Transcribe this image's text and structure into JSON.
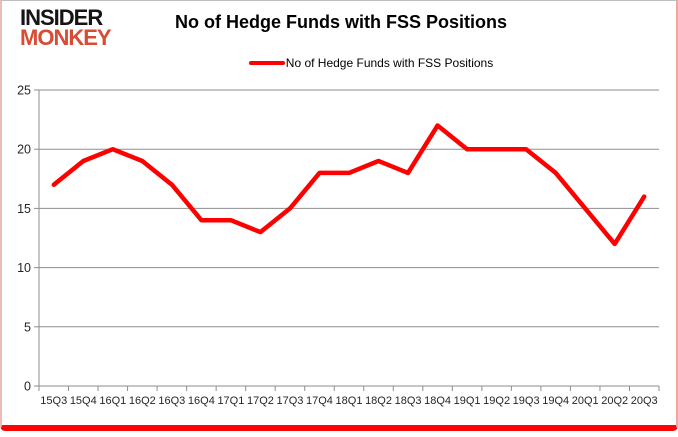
{
  "logo": {
    "line1": "INSIDER",
    "line2": "MONKEY"
  },
  "header": {
    "title": "No of Hedge Funds with FSS Positions"
  },
  "legend": {
    "label": "No of Hedge Funds with FSS Positions"
  },
  "colors": {
    "series_line": "#ff0000",
    "gridline": "#8e8e8e",
    "axis_line": "#8e8e8e",
    "axis_text": "#262626",
    "title_text": "#000000",
    "logo_black": "#151515",
    "logo_red": "#d84b35",
    "frame_bottom": "#fb0606"
  },
  "chart_data": {
    "type": "line",
    "title": "No of Hedge Funds with FSS Positions",
    "xlabel": "",
    "ylabel": "",
    "categories": [
      "15Q3",
      "15Q4",
      "16Q1",
      "16Q2",
      "16Q3",
      "16Q4",
      "17Q1",
      "17Q2",
      "17Q3",
      "17Q4",
      "18Q1",
      "18Q2",
      "18Q3",
      "18Q4",
      "19Q1",
      "19Q2",
      "19Q3",
      "19Q4",
      "20Q1",
      "20Q2",
      "20Q3"
    ],
    "series": [
      {
        "name": "No of Hedge Funds with FSS Positions",
        "color": "#ff0000",
        "values": [
          17,
          19,
          20,
          19,
          17,
          14,
          14,
          13,
          15,
          18,
          18,
          19,
          18,
          22,
          20,
          20,
          20,
          18,
          15,
          12,
          16
        ]
      }
    ],
    "ylim": [
      0,
      25
    ],
    "yticks": [
      0,
      5,
      10,
      15,
      20,
      25
    ],
    "grid": "horizontal",
    "legend_position": "top-center"
  }
}
